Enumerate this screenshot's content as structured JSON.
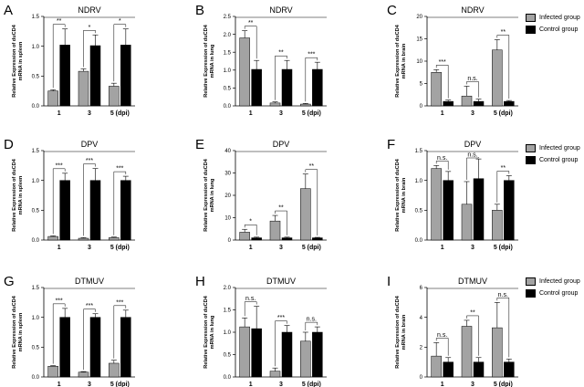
{
  "legend": {
    "infected": {
      "label": "Infected group",
      "color": "#a3a3a3"
    },
    "control": {
      "label": "Control group",
      "color": "#000000"
    }
  },
  "chart_data": [
    {
      "letter": "A",
      "type": "bar",
      "title": "NDRV",
      "ylabel_line1": "Relative Expression of duCD4",
      "ylabel_line2": "mRNA in spleen",
      "categories": [
        "1",
        "3",
        "5 (dpi)"
      ],
      "ylim": [
        0,
        1.5
      ],
      "ticks": [
        "0.0",
        "0.5",
        "1.0",
        "1.5"
      ],
      "series": [
        {
          "name": "Infected group",
          "values": [
            0.25,
            0.58,
            0.33
          ],
          "errors": [
            0.02,
            0.04,
            0.05
          ]
        },
        {
          "name": "Control group",
          "values": [
            1.02,
            1.01,
            1.02
          ],
          "errors": [
            0.27,
            0.18,
            0.27
          ]
        }
      ],
      "significance": [
        "**",
        "*",
        "*"
      ]
    },
    {
      "letter": "B",
      "type": "bar",
      "title": "NDRV",
      "ylabel_line1": "Relative Expression of duCD4",
      "ylabel_line2": "mRNA in lung",
      "categories": [
        "1",
        "3",
        "5 (dpi)"
      ],
      "ylim": [
        0,
        2.5
      ],
      "ticks": [
        "0.0",
        "0.5",
        "1.0",
        "1.5",
        "2.0",
        "2.5"
      ],
      "series": [
        {
          "name": "Infected group",
          "values": [
            1.9,
            0.08,
            0.05
          ],
          "errors": [
            0.2,
            0.03,
            0.02
          ]
        },
        {
          "name": "Control group",
          "values": [
            1.02,
            1.02,
            1.02
          ],
          "errors": [
            0.25,
            0.25,
            0.2
          ]
        }
      ],
      "significance": [
        "**",
        "**",
        "***"
      ]
    },
    {
      "letter": "C",
      "type": "bar",
      "title": "NDRV",
      "ylabel_line1": "Relative Expression of duCD4",
      "ylabel_line2": "mRNA in brain",
      "categories": [
        "1",
        "3",
        "5 (dpi)"
      ],
      "ylim": [
        0,
        20
      ],
      "ticks": [
        "0",
        "5",
        "10",
        "15",
        "20"
      ],
      "series": [
        {
          "name": "Infected group",
          "values": [
            7.5,
            2.2,
            12.5
          ],
          "errors": [
            0.6,
            2.2,
            2.3
          ]
        },
        {
          "name": "Control group",
          "values": [
            1.0,
            1.0,
            1.0
          ],
          "errors": [
            0.3,
            0.5,
            0.2
          ]
        }
      ],
      "significance": [
        "***",
        "n.s.",
        "**"
      ]
    },
    {
      "letter": "D",
      "type": "bar",
      "title": "DPV",
      "ylabel_line1": "Relative Expression of duCD4",
      "ylabel_line2": "mRNA in spleen",
      "categories": [
        "1",
        "3",
        "5 (dpi)"
      ],
      "ylim": [
        0,
        1.5
      ],
      "ticks": [
        "0.0",
        "0.5",
        "1.0",
        "1.5"
      ],
      "series": [
        {
          "name": "Infected group",
          "values": [
            0.06,
            0.03,
            0.04
          ],
          "errors": [
            0.01,
            0.01,
            0.01
          ]
        },
        {
          "name": "Control group",
          "values": [
            1.0,
            1.0,
            1.0
          ],
          "errors": [
            0.12,
            0.2,
            0.07
          ]
        }
      ],
      "significance": [
        "***",
        "***",
        "***"
      ]
    },
    {
      "letter": "E",
      "type": "bar",
      "title": "DPV",
      "ylabel_line1": "Relative Expression of duCD4",
      "ylabel_line2": "mRNA in lung",
      "categories": [
        "1",
        "3",
        "5 (dpi)"
      ],
      "ylim": [
        0,
        40
      ],
      "ticks": [
        "0",
        "10",
        "20",
        "30",
        "40"
      ],
      "series": [
        {
          "name": "Infected group",
          "values": [
            3.5,
            8.5,
            23
          ],
          "errors": [
            1.3,
            2.5,
            6.5
          ]
        },
        {
          "name": "Control group",
          "values": [
            1.0,
            1.0,
            1.0
          ],
          "errors": [
            0.3,
            0.3,
            0.2
          ]
        }
      ],
      "significance": [
        "*",
        "**",
        "**"
      ]
    },
    {
      "letter": "F",
      "type": "bar",
      "title": "DPV",
      "ylabel_line1": "Relative Expression of duCD4",
      "ylabel_line2": "mRNA in brain",
      "categories": [
        "1",
        "3",
        "5 (dpi)"
      ],
      "ylim": [
        0,
        1.5
      ],
      "ticks": [
        "0.0",
        "0.5",
        "1.0",
        "1.5"
      ],
      "series": [
        {
          "name": "Infected group",
          "values": [
            1.2,
            0.6,
            0.5
          ],
          "errors": [
            0.05,
            0.38,
            0.1
          ]
        },
        {
          "name": "Control group",
          "values": [
            1.0,
            1.03,
            1.0
          ],
          "errors": [
            0.15,
            0.33,
            0.08
          ]
        }
      ],
      "significance": [
        "n.s.",
        "n.s.",
        "**"
      ]
    },
    {
      "letter": "G",
      "type": "bar",
      "title": "DTMUV",
      "ylabel_line1": "Relative Expression of duCD4",
      "ylabel_line2": "mRNA in spleen",
      "categories": [
        "1",
        "3",
        "5 (dpi)"
      ],
      "ylim": [
        0,
        1.5
      ],
      "ticks": [
        "0.0",
        "0.5",
        "1.0",
        "1.5"
      ],
      "series": [
        {
          "name": "Infected group",
          "values": [
            0.18,
            0.08,
            0.23
          ],
          "errors": [
            0.01,
            0.01,
            0.05
          ]
        },
        {
          "name": "Control group",
          "values": [
            1.0,
            1.0,
            1.0
          ],
          "errors": [
            0.15,
            0.06,
            0.12
          ]
        }
      ],
      "significance": [
        "***",
        "***",
        "***"
      ]
    },
    {
      "letter": "H",
      "type": "bar",
      "title": "DTMUV",
      "ylabel_line1": "Relative Expression of duCD4",
      "ylabel_line2": "mRNA in lung",
      "categories": [
        "1",
        "3",
        "5 (dpi)"
      ],
      "ylim": [
        0,
        2.0
      ],
      "ticks": [
        "0.0",
        "0.5",
        "1.0",
        "1.5",
        "2.0"
      ],
      "series": [
        {
          "name": "Infected group",
          "values": [
            1.12,
            0.13,
            0.8
          ],
          "errors": [
            0.2,
            0.07,
            0.2
          ]
        },
        {
          "name": "Control group",
          "values": [
            1.08,
            1.0,
            1.0
          ],
          "errors": [
            0.5,
            0.15,
            0.12
          ]
        }
      ],
      "significance": [
        "n.s.",
        "***",
        "n.s."
      ]
    },
    {
      "letter": "I",
      "type": "bar",
      "title": "DTMUV",
      "ylabel_line1": "Relative Expression of duCD4",
      "ylabel_line2": "mRNA in brain",
      "categories": [
        "1",
        "3",
        "5 (dpi)"
      ],
      "ylim": [
        0,
        6
      ],
      "ticks": [
        "0",
        "2",
        "4",
        "6"
      ],
      "series": [
        {
          "name": "Infected group",
          "values": [
            1.4,
            3.4,
            3.3
          ],
          "errors": [
            0.9,
            0.4,
            1.7
          ]
        },
        {
          "name": "Control group",
          "values": [
            1.0,
            1.0,
            1.0
          ],
          "errors": [
            0.3,
            0.3,
            0.2
          ]
        }
      ],
      "significance": [
        "n.s.",
        "**",
        "n.s."
      ]
    }
  ]
}
